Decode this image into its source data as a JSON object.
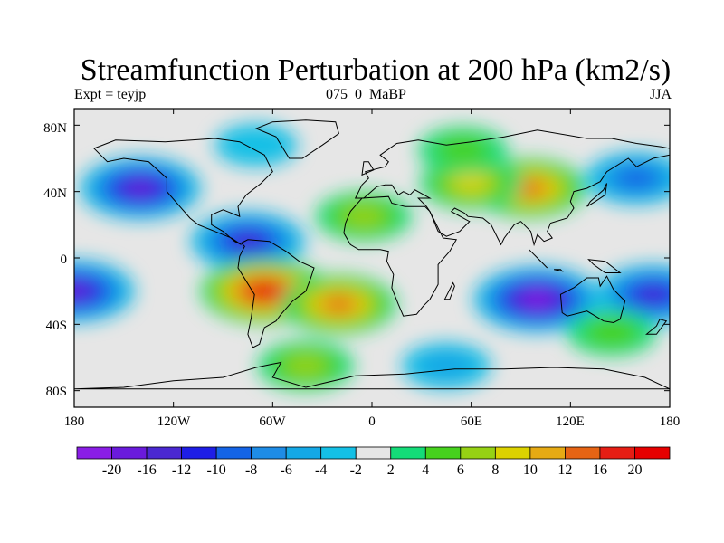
{
  "title": "Streamfunction Perturbation at 200 hPa (km2/s)",
  "left_string": "Expt = teyjp",
  "center_string": "075_0_MaBP",
  "right_string": "JJA",
  "lat_labels": [
    "80N",
    "40N",
    "0",
    "40S",
    "80S"
  ],
  "lon_labels": [
    "180",
    "120W",
    "60W",
    "0",
    "60E",
    "120E",
    "180"
  ],
  "colorbar": {
    "labels": [
      "-20",
      "-16",
      "-12",
      "-10",
      "-8",
      "-6",
      "-4",
      "-2",
      "2",
      "4",
      "6",
      "8",
      "10",
      "12",
      "16",
      "20"
    ],
    "colors": [
      "#8a1ee6",
      "#6a1adc",
      "#4a28d2",
      "#1e1ee6",
      "#1464e6",
      "#1e8ce6",
      "#14a8e6",
      "#14c0e6",
      "#e6e6e6",
      "#14dc78",
      "#46d21e",
      "#96d214",
      "#dcd200",
      "#e6aa14",
      "#e66414",
      "#e61e14",
      "#e60000"
    ]
  },
  "chart_data": {
    "type": "heatmap",
    "title": "Streamfunction Perturbation at 200 hPa (km2/s)",
    "variable": "Streamfunction Perturbation",
    "level": "200 hPa",
    "units": "km2/s",
    "experiment": "teyjp",
    "case": "075_0_MaBP",
    "season": "JJA",
    "contour_levels": [
      -20,
      -16,
      -12,
      -10,
      -8,
      -6,
      -4,
      -2,
      2,
      4,
      6,
      8,
      10,
      12,
      16,
      20
    ],
    "lon_range": [
      -180,
      180
    ],
    "lat_range": [
      -90,
      90
    ],
    "features": [
      {
        "lon": -140,
        "lat": 42,
        "value": -16
      },
      {
        "lon": -75,
        "lat": 10,
        "value": -12
      },
      {
        "lon": -180,
        "lat": -20,
        "value": -16
      },
      {
        "lon": -65,
        "lat": -20,
        "value": 20
      },
      {
        "lon": -20,
        "lat": -28,
        "value": 12
      },
      {
        "lon": 95,
        "lat": 42,
        "value": 12
      },
      {
        "lon": 60,
        "lat": 45,
        "value": 8
      },
      {
        "lon": 55,
        "lat": 65,
        "value": 4
      },
      {
        "lon": -5,
        "lat": 25,
        "value": 6
      },
      {
        "lon": 100,
        "lat": -25,
        "value": -20
      },
      {
        "lon": 170,
        "lat": -22,
        "value": -12
      },
      {
        "lon": 160,
        "lat": 48,
        "value": -8
      },
      {
        "lon": -40,
        "lat": -65,
        "value": 6
      },
      {
        "lon": 145,
        "lat": -45,
        "value": 4
      },
      {
        "lon": -70,
        "lat": 68,
        "value": -2
      },
      {
        "lon": 45,
        "lat": -65,
        "value": -4
      }
    ]
  }
}
